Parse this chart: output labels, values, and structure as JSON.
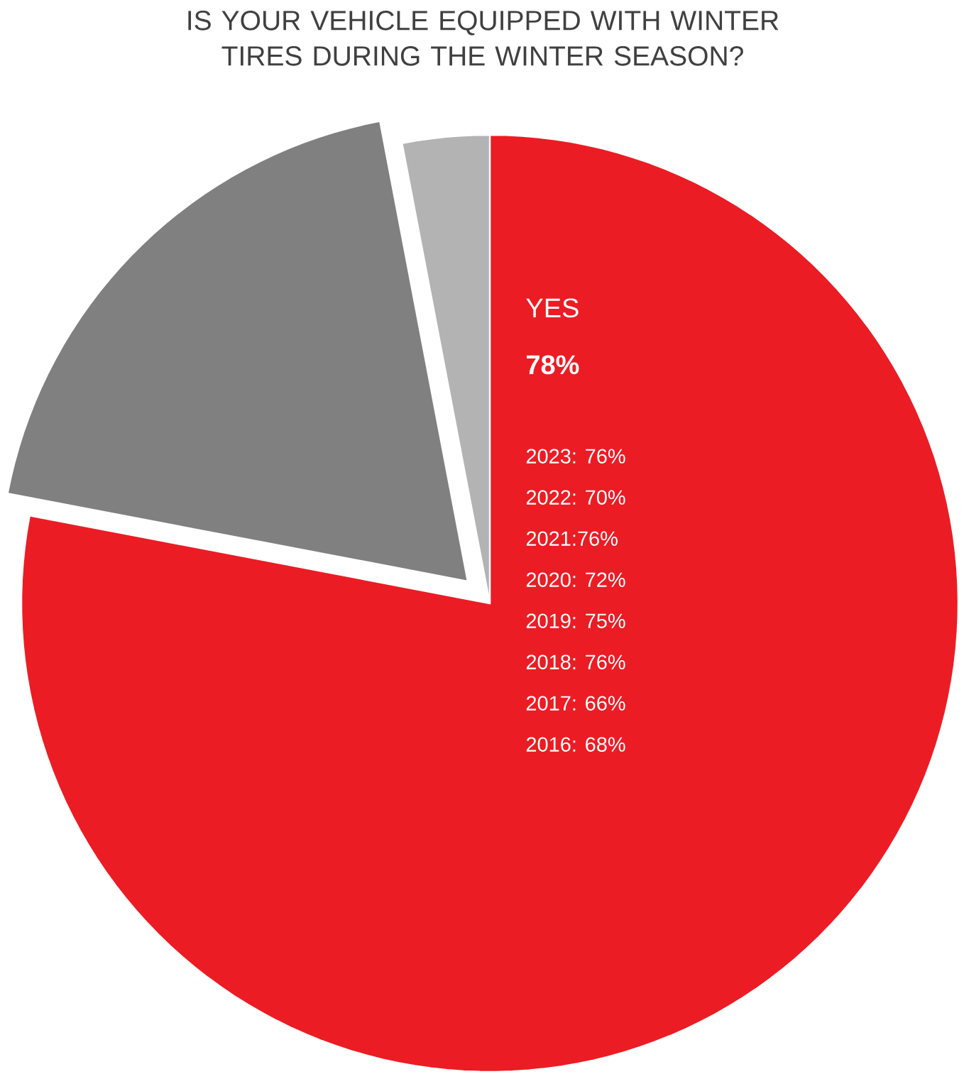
{
  "chart_data": {
    "type": "pie",
    "title": "IS YOUR VEHICLE EQUIPPED WITH WINTER TIRES DURING THE WINTER SEASON?",
    "categories": [
      "YES",
      null,
      null
    ],
    "values": [
      78,
      19,
      3
    ],
    "colors": [
      "#ec1c24",
      "#808080",
      "#b3b3b3"
    ],
    "value_labels": [
      "78%",
      null,
      null
    ],
    "annotations": [
      "2023: 76%",
      "2022: 70%",
      "2021:76%",
      "2020: 72%",
      "2019: 75%",
      "2018: 76%",
      "2017: 66%",
      "2016: 68%"
    ]
  }
}
